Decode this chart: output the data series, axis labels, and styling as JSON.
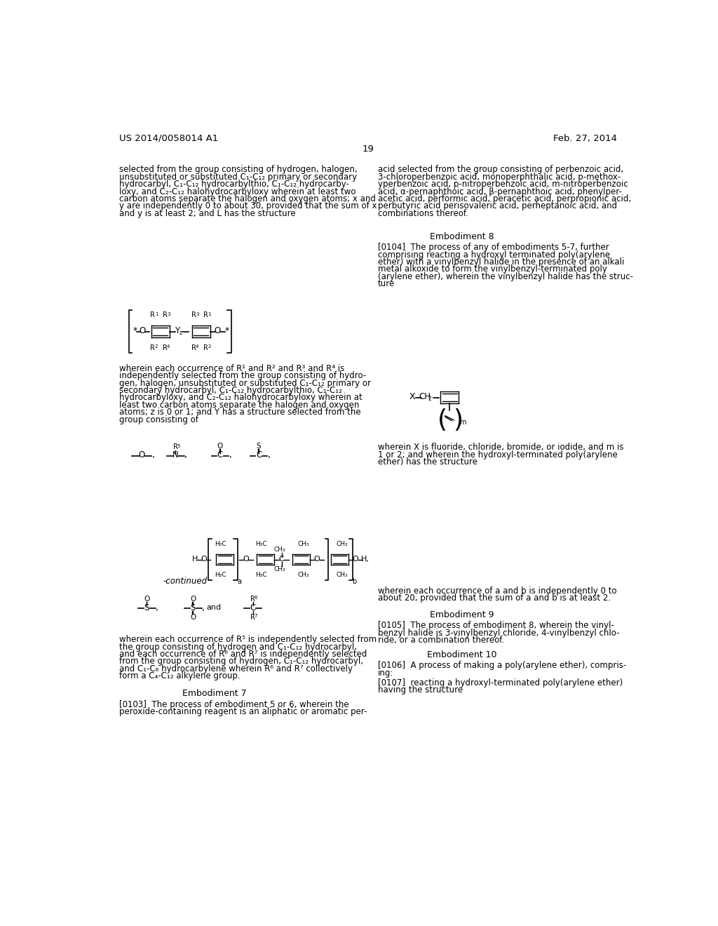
{
  "page_header_left": "US 2014/0058014 A1",
  "page_header_right": "Feb. 27, 2014",
  "page_number": "19",
  "background_color": "#ffffff",
  "text_color": "#000000",
  "font_size_body": 8.5,
  "font_size_header": 9.5,
  "left_col_text": [
    "selected from the group consisting of hydrogen, halogen,",
    "unsubstituted or substituted C₁-C₁₂ primary or secondary",
    "hydrocarbyl, C₁-C₁₂ hydrocarbylthio, C₁-C₁₂ hydrocarby-",
    "loxy, and C₂-C₁₂ halohydrocarbyloxy wherein at least two",
    "carbon atoms separate the halogen and oxygen atoms; x and",
    "y are independently 0 to about 30, provided that the sum of x",
    "and y is at least 2; and L has the structure"
  ],
  "right_col_text_1": [
    "acid selected from the group consisting of perbenzoic acid,",
    "3-chloroperbenzoic acid, monoperphthalic acid, p-methox-",
    "yperbenzoic acid, p-nitroperbenzoic acid, m-nitroperbenzoic",
    "acid, α-pernaphthoic acid, β-pernaphthoic acid, phenylper-",
    "acetic acid, performic acid, peracetic acid, perpropionic acid,",
    "perbutyric acid perisovaleric acid, perheptanoic acid, and",
    "combinations thereof."
  ],
  "embodiment8_title": "Embodiment 8",
  "embodiment8_text": [
    "[0104]  The process of any of embodiments 5-7, further",
    "comprising reacting a hydroxyl terminated poly(arylene",
    "ether) with a vinylbenzyl halide in the presence of an alkali",
    "metal alkoxide to form the vinylbenzyl-terminated poly",
    "(arylene ether), wherein the vinylbenzyl halide has the struc-",
    "ture"
  ],
  "left_col_text2": [
    "wherein each occurrence of R¹ and R² and R³ and R⁴ is",
    "independently selected from the group consisting of hydro-",
    "gen, halogen, unsubstituted or substituted C₁-C₁₂ primary or",
    "secondary hydrocarbyl, C₁-C₁₂ hydrocarbylthio, C₁-C₁₂",
    "hydrocarbyloxy, and C₂-C₁₂ halohydrocarbyloxy wherein at",
    "least two carbon atoms separate the halogen and oxygen",
    "atoms; z is 0 or 1; and Y has a structure selected from the",
    "group consisting of"
  ],
  "right_col_text2": [
    "wherein X is fluoride, chloride, bromide, or iodide, and m is",
    "1 or 2; and wherein the hydroxyl-terminated poly(arylene",
    "ether) has the structure"
  ],
  "continued_label": "-continued",
  "left_col_text3": [
    "wherein each occurrence of R⁵ is independently selected from",
    "the group consisting of hydrogen and C₁-C₁₂ hydrocarbyl,",
    "and each occurrence of R⁶ and R⁷ is independently selected",
    "from the group consisting of hydrogen, C₁-C₁₂ hydrocarbyl,",
    "and C₁-C₆ hydrocarbylene wherein R⁶ and R⁷ collectively",
    "form a C₄-C₁₂ alkylene group."
  ],
  "right_col_text3": [
    "wherein each occurrence of a and b is independently 0 to",
    "about 20, provided that the sum of a and b is at least 2."
  ],
  "embodiment7_title": "Embodiment 7",
  "embodiment7_text": [
    "[0103]  The process of embodiment 5 or 6, wherein the",
    "peroxide-containing reagent is an aliphatic or aromatic per-"
  ],
  "embodiment9_title": "Embodiment 9",
  "embodiment9_text": [
    "[0105]  The process of embodiment 8, wherein the vinyl-",
    "benzyl halide is 3-vinylbenzyl chloride, 4-vinylbenzyl chlo-",
    "ride, or a combination thereof."
  ],
  "embodiment10_title": "Embodiment 10",
  "embodiment10_text": [
    "[0106]  A process of making a poly(arylene ether), compris-",
    "ing:"
  ],
  "embodiment10_text2": [
    "[0107]  reacting a hydroxyl-terminated poly(arylene ether)",
    "having the structure"
  ]
}
